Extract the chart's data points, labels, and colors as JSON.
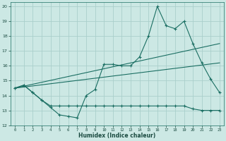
{
  "xlabel": "Humidex (Indice chaleur)",
  "xlim": [
    -0.5,
    23.5
  ],
  "ylim": [
    12,
    20.3
  ],
  "yticks": [
    12,
    13,
    14,
    15,
    16,
    17,
    18,
    19,
    20
  ],
  "xticks": [
    0,
    1,
    2,
    3,
    4,
    5,
    6,
    7,
    8,
    9,
    10,
    11,
    12,
    13,
    14,
    15,
    16,
    17,
    18,
    19,
    20,
    21,
    22,
    23
  ],
  "background_color": "#cce8e4",
  "grid_color": "#aacfcb",
  "line_color": "#1a6e62",
  "series1": {
    "x": [
      0,
      1,
      2,
      3,
      4,
      5,
      6,
      7,
      8,
      9,
      10,
      11,
      12,
      13,
      14,
      15,
      16,
      17,
      18,
      19,
      20,
      21,
      22,
      23
    ],
    "y": [
      14.5,
      14.7,
      14.2,
      13.7,
      13.2,
      12.7,
      12.6,
      12.5,
      14.0,
      14.4,
      16.1,
      16.1,
      16.0,
      16.0,
      16.6,
      18.0,
      20.0,
      18.7,
      18.5,
      19.0,
      17.5,
      16.2,
      15.1,
      14.2
    ]
  },
  "series2": {
    "x": [
      0,
      1,
      2,
      3,
      4,
      5,
      6,
      7,
      8,
      9,
      10,
      11,
      12,
      13,
      14,
      15,
      16,
      17,
      18,
      19,
      20,
      21,
      22,
      23
    ],
    "y": [
      14.5,
      14.7,
      14.2,
      13.7,
      13.3,
      13.3,
      13.3,
      13.3,
      13.3,
      13.3,
      13.3,
      13.3,
      13.3,
      13.3,
      13.3,
      13.3,
      13.3,
      13.3,
      13.3,
      13.3,
      13.1,
      13.0,
      13.0,
      13.0
    ]
  },
  "line1": {
    "x": [
      0,
      23
    ],
    "y": [
      14.5,
      17.5
    ]
  },
  "line2": {
    "x": [
      0,
      23
    ],
    "y": [
      14.5,
      16.2
    ]
  },
  "xlabel_fontsize": 5.5,
  "tick_fontsize": 4.5,
  "xlabel_color": "#1a4a40"
}
